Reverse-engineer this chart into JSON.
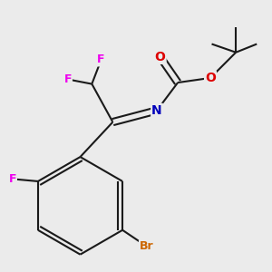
{
  "bg_color": "#ebebeb",
  "bond_color": "#1a1a1a",
  "atom_colors": {
    "F": "#ee00ee",
    "Br": "#cc6600",
    "O": "#dd0000",
    "N": "#0000bb",
    "C": "#1a1a1a"
  },
  "figsize": [
    3.0,
    3.0
  ],
  "dpi": 100
}
